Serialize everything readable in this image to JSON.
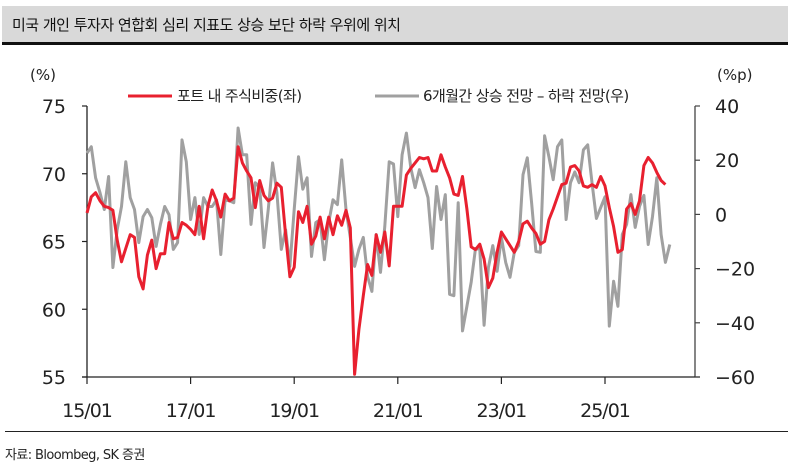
{
  "header": {
    "title": "미국 개인 투자자 연합회 심리 지표도 상승 보단 하락 우위에 위치"
  },
  "footer": {
    "source": "자료: Bloombeg, SK 증권"
  },
  "chart_data": {
    "type": "line",
    "title": "미국 개인 투자자 연합회 심리 지표도 상승 보단 하락 우위에 위치",
    "x_start": "2015-01",
    "x_frequency": "monthly",
    "x_ticks": [
      "15/01",
      "17/01",
      "19/01",
      "21/01",
      "23/01",
      "25/01"
    ],
    "y_left": {
      "label": "(%)",
      "range": [
        55,
        75
      ],
      "ticks": [
        "55",
        "60",
        "65",
        "70",
        "75"
      ]
    },
    "y_right": {
      "label": "(%p)",
      "range": [
        -60,
        40
      ],
      "ticks": [
        "-60",
        "-40",
        "-20",
        "0",
        "20",
        "40"
      ]
    },
    "grid": false,
    "legend_position": "top",
    "series": [
      {
        "name": "포트 내 주식비중(좌)",
        "axis": "left",
        "color": "#e8202f",
        "values": [
          67.1,
          68.3,
          68.6,
          68,
          67.6,
          67.5,
          67.3,
          65.1,
          63.5,
          64.5,
          65.5,
          65.3,
          62.4,
          61.5,
          64,
          65.1,
          63,
          64.1,
          64.1,
          66.4,
          65.2,
          65.3,
          66.4,
          66.2,
          65.9,
          65.5,
          67.6,
          65.2,
          67.6,
          68.8,
          68,
          66.8,
          68.5,
          68,
          68.2,
          72,
          70.8,
          70.2,
          69.7,
          67.5,
          69.5,
          68.4,
          68,
          68.2,
          69.3,
          69,
          65.5,
          62.4,
          63.1,
          67.2,
          66.4,
          67.6,
          64.8,
          65.4,
          66.8,
          65.2,
          66.8,
          65.5,
          66.9,
          66.2,
          67.3,
          66,
          55.2,
          58.5,
          61,
          63.3,
          62.5,
          65.5,
          64.2,
          65.7,
          63.2,
          67.6,
          67.6,
          67.6,
          69.9,
          70.4,
          70.8,
          71.2,
          71.1,
          71.2,
          70.2,
          70.2,
          71.4,
          70.5,
          69.7,
          68.5,
          68.4,
          69.8,
          67.4,
          64.6,
          64.4,
          64.8,
          63.7,
          61.6,
          62.3,
          64.2,
          65.7,
          65.2,
          64.7,
          64.2,
          65,
          66.3,
          66.5,
          66,
          65.6,
          64.8,
          65,
          66.6,
          67.4,
          68.3,
          69.2,
          69.3,
          70.5,
          70.6,
          70.2,
          69.1,
          69,
          69.2,
          69,
          69.8,
          69.1,
          67.5,
          66.1,
          64.2,
          64.4,
          67.4,
          67.8,
          67,
          68,
          70.6,
          71.2,
          70.8,
          70.1,
          69.5,
          69.2
        ]
      },
      {
        "name": "6개월간 상승 전망 – 하락 전망(우)",
        "axis": "right",
        "color": "#a0a0a0",
        "values": [
          22.6,
          25,
          13.5,
          8,
          1.8,
          14,
          -19.6,
          -5.6,
          2.9,
          19.4,
          6.2,
          1.8,
          -10.4,
          -0.8,
          1.8,
          -1.2,
          -11.8,
          -3.7,
          2.9,
          -0.1,
          -12.9,
          -10.4,
          27.5,
          19.4,
          -1.9,
          6.2,
          -7.4,
          6.2,
          2.9,
          2.9,
          5.4,
          -14.8,
          5.4,
          5,
          4.3,
          31.9,
          22,
          22,
          -3.7,
          11.7,
          10,
          -12.2,
          2,
          19,
          8,
          -12.9,
          -5.6,
          -19.2,
          1.8,
          21.3,
          9.3,
          13.5,
          -15.5,
          -3,
          -2,
          -16.7,
          -3,
          5.4,
          3.6,
          20.1,
          1.8,
          -8.5,
          -19.2,
          -12.9,
          -8.5,
          -22.9,
          -28.4,
          -7.4,
          -21.4,
          -4.4,
          19.4,
          18.6,
          -0.8,
          22,
          30,
          17.2,
          9.9,
          16.5,
          11.7,
          6.2,
          -12.6,
          10.3,
          -1.9,
          7.3,
          -29.5,
          -30,
          4.3,
          -43,
          -33.9,
          -25,
          -12.6,
          -12.9,
          -40.9,
          -19.6,
          -11.5,
          -21,
          -8.5,
          -17.7,
          -23.2,
          -14,
          -11.5,
          14.6,
          20.9,
          4.3,
          -13.7,
          -14,
          29,
          21.3,
          12.8,
          25,
          27.5,
          -1.9,
          11.7,
          15.7,
          11.7,
          23.8,
          25.7,
          11.7,
          -1.5,
          2.5,
          6.5,
          -41.2,
          -24.7,
          -33.9,
          -7.4,
          -3.7,
          7.3,
          -4.8,
          2.9,
          7,
          -11.1,
          -0.8,
          13.5,
          -7.4,
          -17.7,
          -11.1
        ]
      }
    ]
  }
}
